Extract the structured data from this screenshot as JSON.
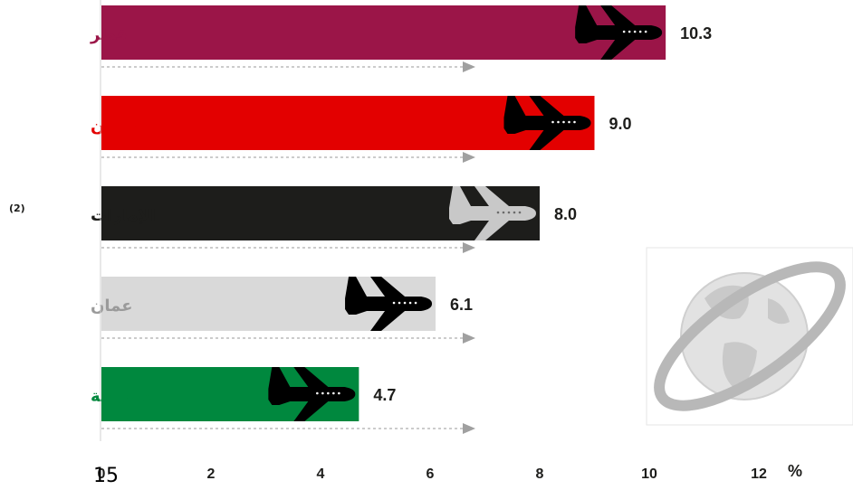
{
  "chart_data": {
    "type": "bar",
    "orientation": "horizontal",
    "categories": [
      "قطر",
      "البحرين",
      "الإمارات",
      "عمان",
      "السعودية"
    ],
    "category_superscripts": [
      "",
      "",
      "(2)",
      "",
      ""
    ],
    "values": [
      10.3,
      9.0,
      8.0,
      6.1,
      4.7
    ],
    "value_labels": [
      "10.3",
      "9.0",
      "8.0",
      "6.1",
      "4.7"
    ],
    "bar_colors": [
      "#9B1548",
      "#E30000",
      "#1D1D1B",
      "#D9D9D9",
      "#00883E"
    ],
    "label_colors": [
      "#9B1548",
      "#E30000",
      "#1D1D1B",
      "#9A9A9A",
      "#00883E"
    ],
    "plane_colors": [
      "#000000",
      "#000000",
      "#C8C8C8",
      "#000000",
      "#000000"
    ],
    "xlim": [
      0,
      12
    ],
    "x_ticks": [
      "0",
      "2",
      "4",
      "6",
      "8",
      "10",
      "12"
    ],
    "x_unit": "%",
    "grid": false,
    "legend": "none"
  },
  "page_number": "15",
  "icons": {
    "bar_marker": "airplane-icon",
    "watermark": "globe-orbit-logo"
  }
}
